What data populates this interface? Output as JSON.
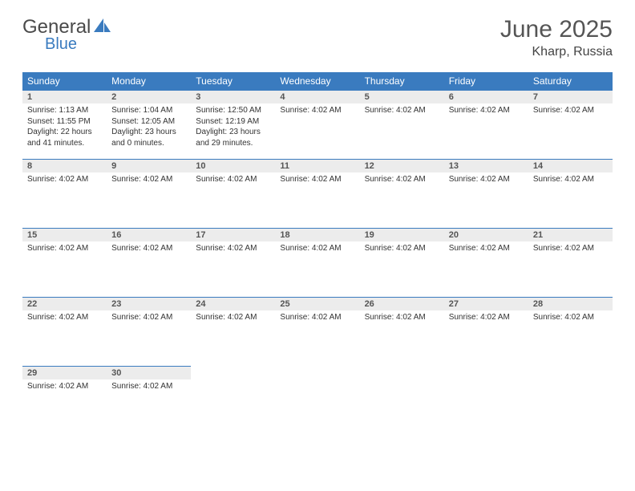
{
  "logo": {
    "text1": "General",
    "text2": "Blue"
  },
  "title": "June 2025",
  "location": "Kharp, Russia",
  "colors": {
    "header_bg": "#3a7bbf",
    "header_fg": "#ffffff",
    "daynum_bg": "#ececec",
    "daynum_border": "#3a7bbf",
    "text": "#333333"
  },
  "days_of_week": [
    "Sunday",
    "Monday",
    "Tuesday",
    "Wednesday",
    "Thursday",
    "Friday",
    "Saturday"
  ],
  "weeks": [
    [
      {
        "n": "1",
        "lines": [
          "Sunrise: 1:13 AM",
          "Sunset: 11:55 PM",
          "Daylight: 22 hours and 41 minutes."
        ]
      },
      {
        "n": "2",
        "lines": [
          "Sunrise: 1:04 AM",
          "Sunset: 12:05 AM",
          "Daylight: 23 hours and 0 minutes."
        ]
      },
      {
        "n": "3",
        "lines": [
          "Sunrise: 12:50 AM",
          "Sunset: 12:19 AM",
          "Daylight: 23 hours and 29 minutes."
        ]
      },
      {
        "n": "4",
        "lines": [
          "Sunrise: 4:02 AM"
        ]
      },
      {
        "n": "5",
        "lines": [
          "Sunrise: 4:02 AM"
        ]
      },
      {
        "n": "6",
        "lines": [
          "Sunrise: 4:02 AM"
        ]
      },
      {
        "n": "7",
        "lines": [
          "Sunrise: 4:02 AM"
        ]
      }
    ],
    [
      {
        "n": "8",
        "lines": [
          "Sunrise: 4:02 AM"
        ]
      },
      {
        "n": "9",
        "lines": [
          "Sunrise: 4:02 AM"
        ]
      },
      {
        "n": "10",
        "lines": [
          "Sunrise: 4:02 AM"
        ]
      },
      {
        "n": "11",
        "lines": [
          "Sunrise: 4:02 AM"
        ]
      },
      {
        "n": "12",
        "lines": [
          "Sunrise: 4:02 AM"
        ]
      },
      {
        "n": "13",
        "lines": [
          "Sunrise: 4:02 AM"
        ]
      },
      {
        "n": "14",
        "lines": [
          "Sunrise: 4:02 AM"
        ]
      }
    ],
    [
      {
        "n": "15",
        "lines": [
          "Sunrise: 4:02 AM"
        ]
      },
      {
        "n": "16",
        "lines": [
          "Sunrise: 4:02 AM"
        ]
      },
      {
        "n": "17",
        "lines": [
          "Sunrise: 4:02 AM"
        ]
      },
      {
        "n": "18",
        "lines": [
          "Sunrise: 4:02 AM"
        ]
      },
      {
        "n": "19",
        "lines": [
          "Sunrise: 4:02 AM"
        ]
      },
      {
        "n": "20",
        "lines": [
          "Sunrise: 4:02 AM"
        ]
      },
      {
        "n": "21",
        "lines": [
          "Sunrise: 4:02 AM"
        ]
      }
    ],
    [
      {
        "n": "22",
        "lines": [
          "Sunrise: 4:02 AM"
        ]
      },
      {
        "n": "23",
        "lines": [
          "Sunrise: 4:02 AM"
        ]
      },
      {
        "n": "24",
        "lines": [
          "Sunrise: 4:02 AM"
        ]
      },
      {
        "n": "25",
        "lines": [
          "Sunrise: 4:02 AM"
        ]
      },
      {
        "n": "26",
        "lines": [
          "Sunrise: 4:02 AM"
        ]
      },
      {
        "n": "27",
        "lines": [
          "Sunrise: 4:02 AM"
        ]
      },
      {
        "n": "28",
        "lines": [
          "Sunrise: 4:02 AM"
        ]
      }
    ],
    [
      {
        "n": "29",
        "lines": [
          "Sunrise: 4:02 AM"
        ]
      },
      {
        "n": "30",
        "lines": [
          "Sunrise: 4:02 AM"
        ]
      },
      {
        "empty": true
      },
      {
        "empty": true
      },
      {
        "empty": true
      },
      {
        "empty": true
      },
      {
        "empty": true
      }
    ]
  ]
}
